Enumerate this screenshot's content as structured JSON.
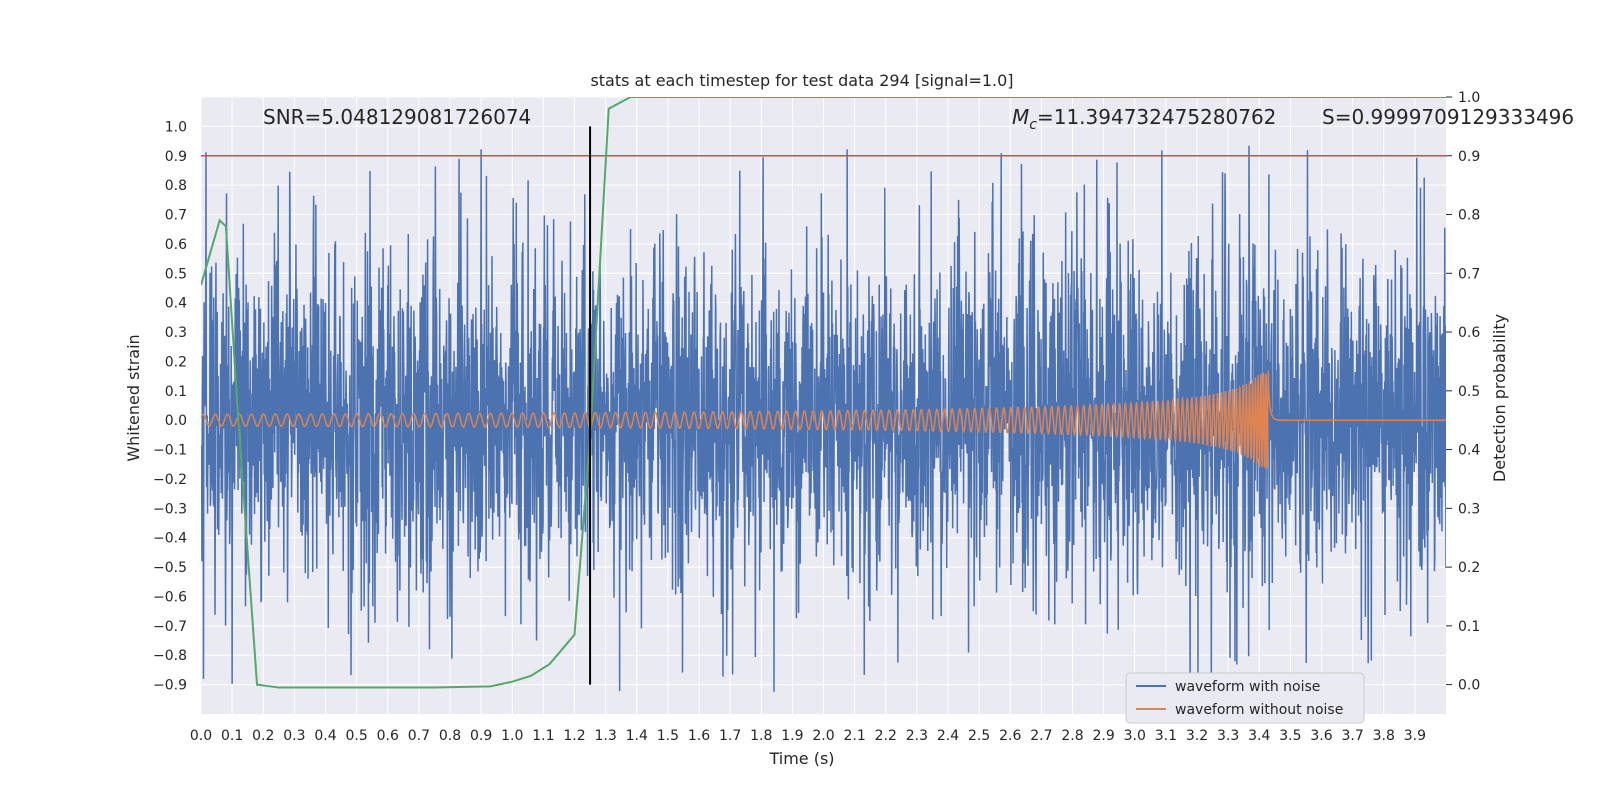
{
  "chart_data": {
    "type": "line",
    "title": "stats at each timestep for test data 294 [signal=1.0]",
    "xlabel": "Time (s)",
    "ylabel": "Whitened strain",
    "ylabel_right": "Detection probability",
    "xlim": [
      0.0,
      4.0
    ],
    "ylim": [
      -1.0,
      1.1
    ],
    "ylim_right": [
      -0.05,
      1.0
    ],
    "x_ticks": [
      "0.0",
      "0.1",
      "0.2",
      "0.3",
      "0.4",
      "0.5",
      "0.6",
      "0.7",
      "0.8",
      "0.9",
      "1.0",
      "1.1",
      "1.2",
      "1.3",
      "1.4",
      "1.5",
      "1.6",
      "1.7",
      "1.8",
      "1.9",
      "2.0",
      "2.1",
      "2.2",
      "2.3",
      "2.4",
      "2.5",
      "2.6",
      "2.7",
      "2.8",
      "2.9",
      "3.0",
      "3.1",
      "3.2",
      "3.3",
      "3.4",
      "3.5",
      "3.6",
      "3.7",
      "3.8",
      "3.9"
    ],
    "y_ticks": [
      "1.0",
      "0.9",
      "0.8",
      "0.7",
      "0.6",
      "0.5",
      "0.4",
      "0.3",
      "0.2",
      "0.1",
      "0.0",
      "−0.1",
      "−0.2",
      "−0.3",
      "−0.4",
      "−0.5",
      "−0.6",
      "−0.7",
      "−0.8",
      "−0.9"
    ],
    "y_tick_values": [
      1.0,
      0.9,
      0.8,
      0.7,
      0.6,
      0.5,
      0.4,
      0.3,
      0.2,
      0.1,
      0.0,
      -0.1,
      -0.2,
      -0.3,
      -0.4,
      -0.5,
      -0.6,
      -0.7,
      -0.8,
      -0.9
    ],
    "y_right_ticks": [
      "1.0",
      "0.9",
      "0.8",
      "0.7",
      "0.6",
      "0.5",
      "0.4",
      "0.3",
      "0.2",
      "0.1",
      "0.0"
    ],
    "y_right_tick_values": [
      1.0,
      0.9,
      0.8,
      0.7,
      0.6,
      0.5,
      0.4,
      0.3,
      0.2,
      0.1,
      0.0
    ],
    "annotations": {
      "snr": "SNR=5.048129081726074",
      "mc": "=11.394732475280762",
      "mc_symbol": "M",
      "mc_sub": "c",
      "s": "S=0.9999709129333496"
    },
    "threshold_right": 0.9,
    "vertical_marker_x": 1.25,
    "legend": {
      "position": "lower-right",
      "entries": [
        "waveform with noise",
        "waveform without noise"
      ]
    },
    "colors": {
      "noise": "#4c72b0",
      "signal": "#dd8452",
      "probability": "#55a868",
      "threshold": "#c44e52",
      "marker": "#000000",
      "plot_bg": "#eaeaf2",
      "grid": "#ffffff"
    },
    "series": [
      {
        "name": "waveform with noise",
        "description": "whitened strain with noise, dense random oscillation mostly within -0.7..0.7 with spikes to about 1.0 and -0.9",
        "amplitude_typical": 0.35,
        "spike_max": 1.0,
        "spike_min": -0.9
      },
      {
        "name": "waveform without noise",
        "description": "chirp signal, amplitude growing from about 0.02 to 0.17, merger near 3.43 s then ringdown to 0",
        "amplitude_start": 0.02,
        "amplitude_peak": 0.17,
        "merger_time": 3.43
      },
      {
        "name": "detection probability",
        "axis": "right",
        "x": [
          0.0,
          0.06,
          0.08,
          0.12,
          0.18,
          0.25,
          0.5,
          0.75,
          0.93,
          1.0,
          1.06,
          1.12,
          1.2,
          1.25,
          1.31,
          1.38,
          1.5,
          2.0,
          2.5,
          3.0,
          3.5,
          4.0
        ],
        "values": [
          0.68,
          0.79,
          0.78,
          0.45,
          0.0,
          -0.005,
          -0.005,
          -0.005,
          -0.003,
          0.005,
          0.015,
          0.035,
          0.085,
          0.42,
          0.98,
          1.0,
          1.0,
          1.0,
          1.0,
          1.0,
          1.0,
          1.0
        ]
      }
    ]
  }
}
